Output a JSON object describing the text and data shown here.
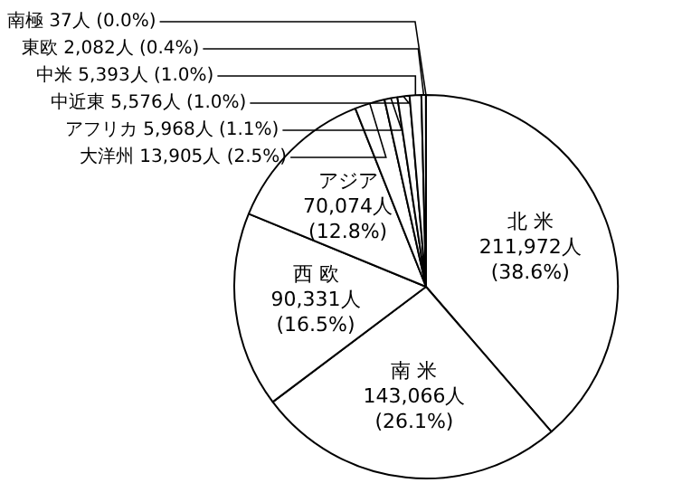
{
  "chart_data": {
    "type": "pie",
    "categories": [
      "北 米",
      "南 米",
      "西 欧",
      "アジア",
      "大洋州",
      "アフリカ",
      "中近東",
      "中米",
      "東欧",
      "南極"
    ],
    "values": [
      211972,
      143066,
      90331,
      70074,
      13905,
      5968,
      5576,
      5393,
      2082,
      37
    ],
    "colors": [
      "#ffffff",
      "#ffffff",
      "#ffffff",
      "#ffffff",
      "#ffffff",
      "#ffffff",
      "#ffffff",
      "#ffffff",
      "#ffffff",
      "#ffffff"
    ],
    "value_labels": [
      "211,972人 (38.6%)",
      "143,066人 (26.1%)",
      "90,331人 (16.5%)",
      "70,074人 (12.8%)",
      "13,905人 (2.5%)",
      "5,968人 (1.1%)",
      "5,576人 (1.0%)",
      "5,393人 (1.0%)",
      "2,082人 (0.4%)",
      "37人 (0.0%)"
    ]
  }
}
